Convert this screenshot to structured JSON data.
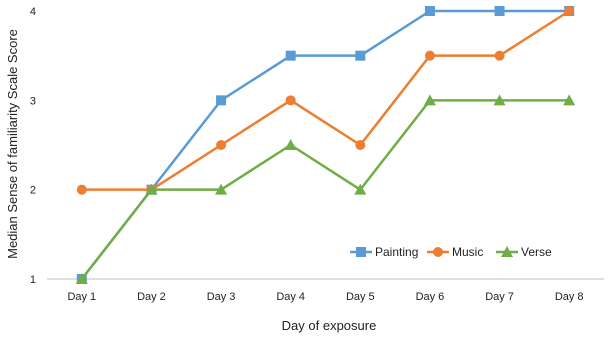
{
  "chart_data": {
    "type": "line",
    "title": "",
    "xlabel": "Day of exposure",
    "ylabel": "Median Sense of familiarity Scale Score",
    "categories": [
      "Day 1",
      "Day 2",
      "Day 3",
      "Day 4",
      "Day 5",
      "Day 6",
      "Day 7",
      "Day 8"
    ],
    "ylim": [
      1,
      4
    ],
    "yticks": [
      1,
      2,
      3,
      4
    ],
    "grid": false,
    "legend_position": "bottom-right",
    "series": [
      {
        "name": "Painting",
        "values": [
          1,
          2,
          3,
          3.5,
          3.5,
          4,
          4,
          4
        ],
        "color": "#5B9BD5",
        "marker": "square"
      },
      {
        "name": "Music",
        "values": [
          2,
          2,
          2.5,
          3,
          2.5,
          3.5,
          3.5,
          4
        ],
        "color": "#ED7D31",
        "marker": "circle"
      },
      {
        "name": "Verse",
        "values": [
          1,
          2,
          2,
          2.5,
          2,
          3,
          3,
          3
        ],
        "color": "#70AD47",
        "marker": "triangle"
      }
    ]
  }
}
